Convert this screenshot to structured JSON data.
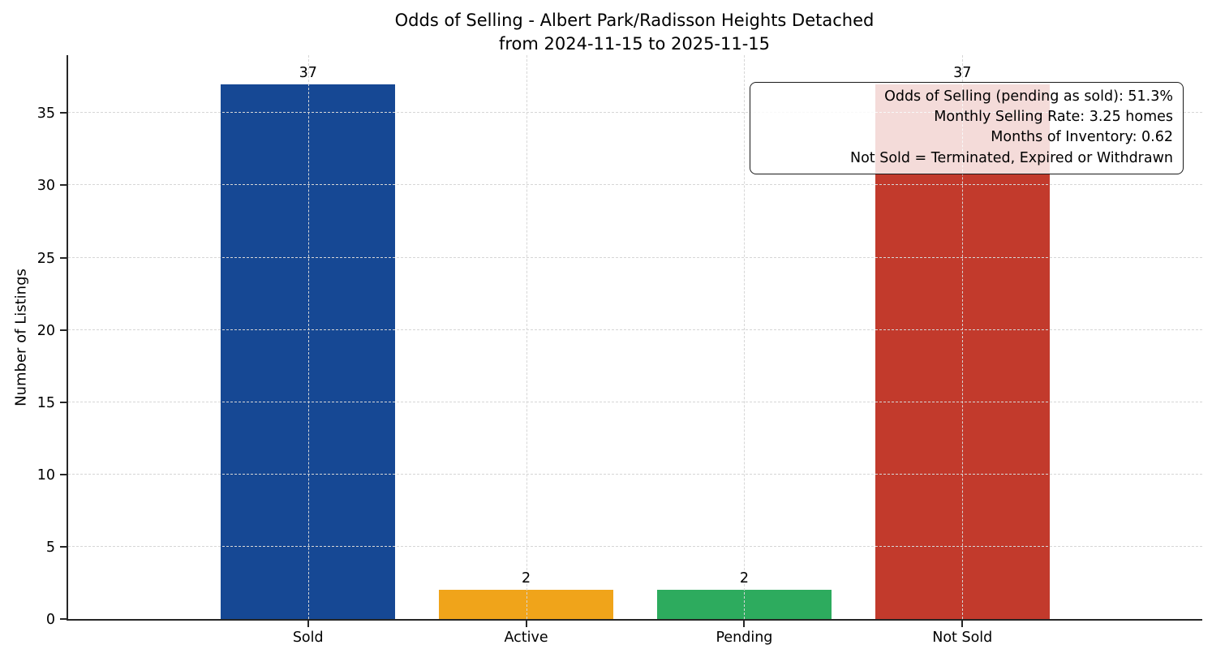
{
  "figure": {
    "title_line1": "Odds of Selling - Albert Park/Radisson Heights Detached",
    "title_line2": "from 2024-11-15 to 2025-11-15"
  },
  "chart_data": {
    "type": "bar",
    "title": "Odds of Selling - Albert Park/Radisson Heights Detached from 2024-11-15 to 2025-11-15",
    "categories": [
      "Sold",
      "Active",
      "Pending",
      "Not Sold"
    ],
    "values": [
      37,
      2,
      2,
      37
    ],
    "value_labels": [
      "37",
      "2",
      "2",
      "37"
    ],
    "bar_colors": [
      "#164894",
      "#F0A41A",
      "#2DAB5E",
      "#C23A2C"
    ],
    "xlabel": "",
    "ylabel": "Number of Listings",
    "ylim": [
      0,
      39
    ],
    "yticks": [
      0,
      5,
      10,
      15,
      20,
      25,
      30,
      35
    ],
    "grid": true,
    "grid_style": "dashed",
    "legend": "none",
    "annotation_box": {
      "position": "top-right",
      "text_align": "right",
      "lines": [
        "Odds of Selling (pending as sold): 51.3%",
        "Monthly Selling Rate: 3.25 homes",
        "Months of Inventory: 0.62",
        "Not Sold = Terminated, Expired or Withdrawn"
      ]
    },
    "colors": {
      "axis": "#262626",
      "grid": "#d6d6d6",
      "text": "#000000",
      "background": "#ffffff"
    }
  }
}
